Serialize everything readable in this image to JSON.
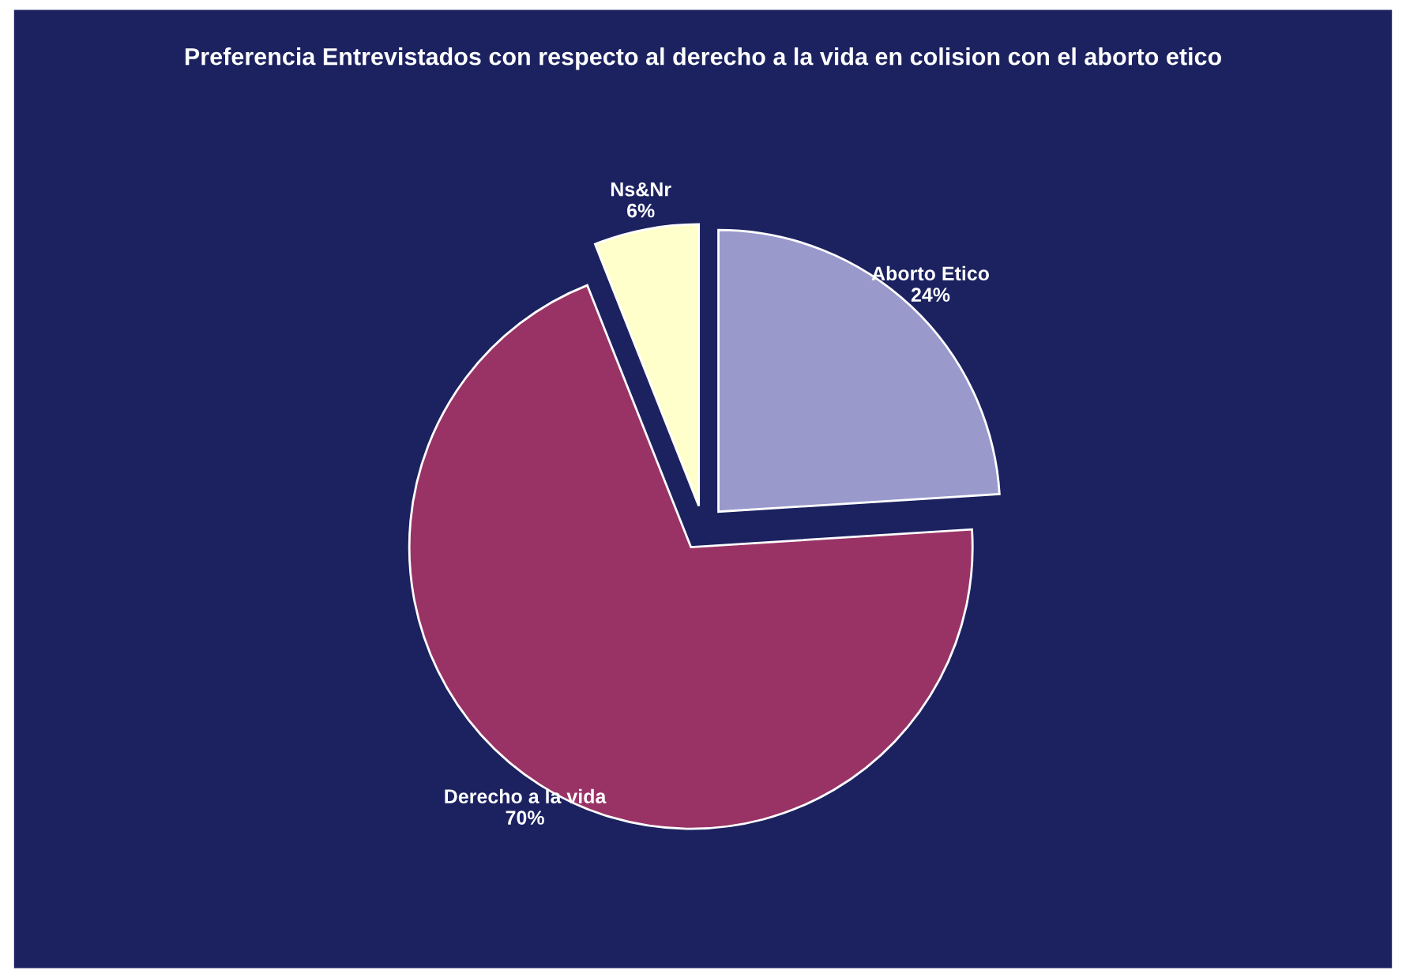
{
  "chart_data": {
    "type": "pie",
    "title": "Preferencia Entrevistados con respecto al derecho a la vida en colision con el aborto etico",
    "categories": [
      "Aborto Etico",
      "Derecho a la vida",
      "Ns&Nr"
    ],
    "values": [
      24,
      70,
      6
    ],
    "value_labels": [
      "24%",
      "70%",
      "6%"
    ],
    "colors": [
      "#9999cc",
      "#993366",
      "#ffffcc"
    ]
  }
}
